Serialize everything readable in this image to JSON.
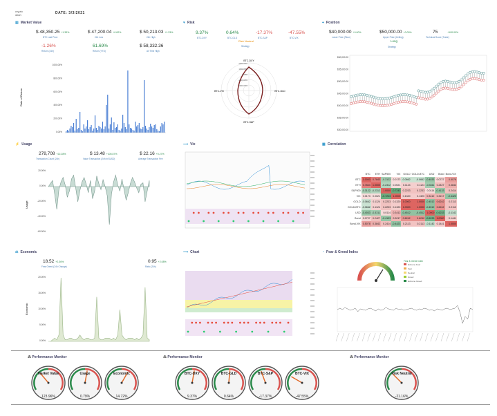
{
  "header": {
    "logo": "crypto dash",
    "date": "DATE: 3/3/2021"
  },
  "market_value": {
    "title": "Market Value",
    "stats": [
      {
        "value": "$ 48,350.25",
        "pct": "+1.33%",
        "label": "BTC Last Price"
      },
      {
        "value": "$ 47,200.04",
        "pct": "+0.62%",
        "label": "24h Low"
      },
      {
        "value": "$ 50,213.03",
        "pct": "+1.33%",
        "label": "24h High"
      }
    ],
    "stats2": [
      {
        "value": "-1.26%",
        "label": "Return (24h)"
      },
      {
        "value": "61.69%",
        "label": "Return (YTD)"
      },
      {
        "value": "$ 58,332.36",
        "label": "All Time High"
      }
    ],
    "ylabel": "Rate of Return",
    "yticks": [
      "1000.00%",
      "800.00%",
      "600.00%",
      "400.00%",
      "200.00%",
      "0.00%"
    ]
  },
  "risk": {
    "title": "Risk",
    "stats": [
      {
        "value": "9.37%",
        "label": "BTC-DXY"
      },
      {
        "value": "0.64%",
        "label": "BTC-GLD"
      },
      {
        "value": "-17.37%",
        "label": "BTC-S&P"
      },
      {
        "value": "-47.55%",
        "label": "BTC-VIX"
      }
    ],
    "strategy_name": "Risk Neutral",
    "strategy_label": "Strategy",
    "radar_axes": [
      "BTC-DXY",
      "BTC-GLD",
      "BTC-S&P",
      "BTC-VIX"
    ],
    "radar_ticks": [
      "2000.00%",
      "1000.00%",
      "0.00%",
      "-1000.00%",
      "-2000.00%"
    ]
  },
  "position": {
    "title": "Position",
    "stats": [
      {
        "value": "$40,000.00",
        "pct": "+0.00%",
        "label": "Lower Price (Floor)"
      },
      {
        "value": "$50,000.00",
        "pct": "+0.00%",
        "label": "Upper Price (Ceiling)"
      },
      {
        "value": "75",
        "pct": "+100.00%",
        "label": "Technical Score (Trade)"
      }
    ],
    "signal": "Long",
    "signal_label": "Strategy",
    "yticks": [
      "$60,000.00",
      "$55,000.00",
      "$50,000.00",
      "$45,000.00",
      "$40,000.00",
      "$35,000.00",
      "$30,000.00"
    ]
  },
  "usage": {
    "title": "Usage",
    "stats": [
      {
        "value": "278,708",
        "pct": "+22.28%",
        "label": "Transaction Count (24h)"
      },
      {
        "value": "$ 13.48",
        "pct": "+105.57%",
        "label": "Value Transaction (24h in $USD)"
      },
      {
        "value": "$ 22.16",
        "pct": "+0.27%",
        "label": "Average Transaction Fee"
      }
    ],
    "ylabel": "Usage",
    "yticks": [
      "20.00%",
      "0.00%",
      "-20.00%",
      "-40.00%",
      "-60.00%"
    ]
  },
  "vix": {
    "title": "Vix"
  },
  "correlation": {
    "title": "Correlation",
    "columns": [
      "BTC",
      "ETH",
      "S&P500",
      "VIX",
      "GOLD",
      "GOLD-BTC",
      "USD",
      "Bond",
      "Bond-VIX"
    ],
    "rows": [
      {
        "name": "BTC",
        "cells": [
          "1.0000",
          "0.7843",
          "-0.3122",
          "0.0173",
          "-0.0662",
          "-0.0662",
          "-0.4033",
          "0.0727",
          "0.5078"
        ]
      },
      {
        "name": "ETH",
        "cells": [
          "0.7843",
          "1.0000",
          "-0.2312",
          "0.0021",
          "0.1124",
          "0.1124",
          "-0.3311",
          "0.2427",
          "0.3842"
        ]
      },
      {
        "name": "S&P500",
        "cells": [
          "-0.3122",
          "-0.2312",
          "1.0000",
          "-0.7243",
          "0.2233",
          "0.2233",
          "0.0114",
          "-0.4133",
          "0.2414"
        ]
      },
      {
        "name": "VIX",
        "cells": [
          "0.0173",
          "0.0021",
          "-0.7243",
          "1.0000",
          "0.1320",
          "0.1320",
          "0.3412",
          "0.3217",
          "-0.4423"
        ]
      },
      {
        "name": "GOLD",
        "cells": [
          "-0.0662",
          "0.1124",
          "0.2233",
          "0.1320",
          "1.0000",
          "1.0000",
          "-0.4512",
          "0.6242",
          "0.2113"
        ]
      },
      {
        "name": "GOLD-BTC",
        "cells": [
          "-0.0662",
          "0.1124",
          "0.2233",
          "0.1320",
          "1.0000",
          "1.0000",
          "-0.4512",
          "0.6242",
          "0.2113"
        ]
      },
      {
        "name": "USD",
        "cells": [
          "-0.4033",
          "-0.3311",
          "0.0114",
          "0.3412",
          "-0.4512",
          "-0.4512",
          "1.0000",
          "-0.6233",
          "-0.1142"
        ]
      },
      {
        "name": "Bond",
        "cells": [
          "0.0727",
          "0.2427",
          "-0.4133",
          "0.3217",
          "0.6242",
          "0.6242",
          "-0.6233",
          "1.0000",
          "0.1441"
        ]
      },
      {
        "name": "Bond-VIX",
        "cells": [
          "0.5078",
          "0.3842",
          "0.2414",
          "-0.4423",
          "0.2113",
          "0.2113",
          "-0.1142",
          "0.1441",
          "1.0000"
        ]
      }
    ]
  },
  "economic": {
    "title": "Economic",
    "stats": [
      {
        "value": "18.52",
        "pct": "+2.36%",
        "label": "Fear Greed (24h Change)"
      },
      {
        "value": "0.95",
        "pct": "+2.08%",
        "label": "Ratio (24h)"
      }
    ],
    "ylabel": "Economic",
    "yticks": [
      "20.00%",
      "15.00%",
      "10.00%",
      "5.00%",
      "0.00%"
    ]
  },
  "chart": {
    "title": "Chart"
  },
  "fear_greed": {
    "title": "Fear & Greed Index",
    "legend_title": "Fear & Greed Index",
    "legend": [
      "Extreme Fear",
      "Fear",
      "Neutral",
      "Greed",
      "Extreme Greed"
    ],
    "legend_colors": [
      "#d9534f",
      "#f0ad4e",
      "#f5d76e",
      "#9acd32",
      "#2a8a4a"
    ]
  },
  "performance": [
    {
      "title": "Performance Monitor",
      "gauges": [
        {
          "label": "Market Value",
          "value": "123.96%"
        },
        {
          "label": "Usage",
          "value": "0.79%"
        },
        {
          "label": "Economic",
          "value": "14.72%"
        }
      ]
    },
    {
      "title": "Performance Monitor",
      "gauges": [
        {
          "label": "BTC-DXY",
          "value": "9.37%"
        },
        {
          "label": "BTC-GLD",
          "value": "0.64%"
        },
        {
          "label": "BTC-S&P",
          "value": "-17.37%"
        },
        {
          "label": "BTC-VIX",
          "value": "-47.55%"
        }
      ]
    },
    {
      "title": "Performance Monitor",
      "gauges": [
        {
          "label": "Risk Neutral",
          "value": "-21.16%"
        }
      ]
    }
  ],
  "colors": {
    "accent": "#3399cc",
    "positive": "#2a8a4a",
    "negative": "#d9534f",
    "bars": "#4a7fd4"
  }
}
